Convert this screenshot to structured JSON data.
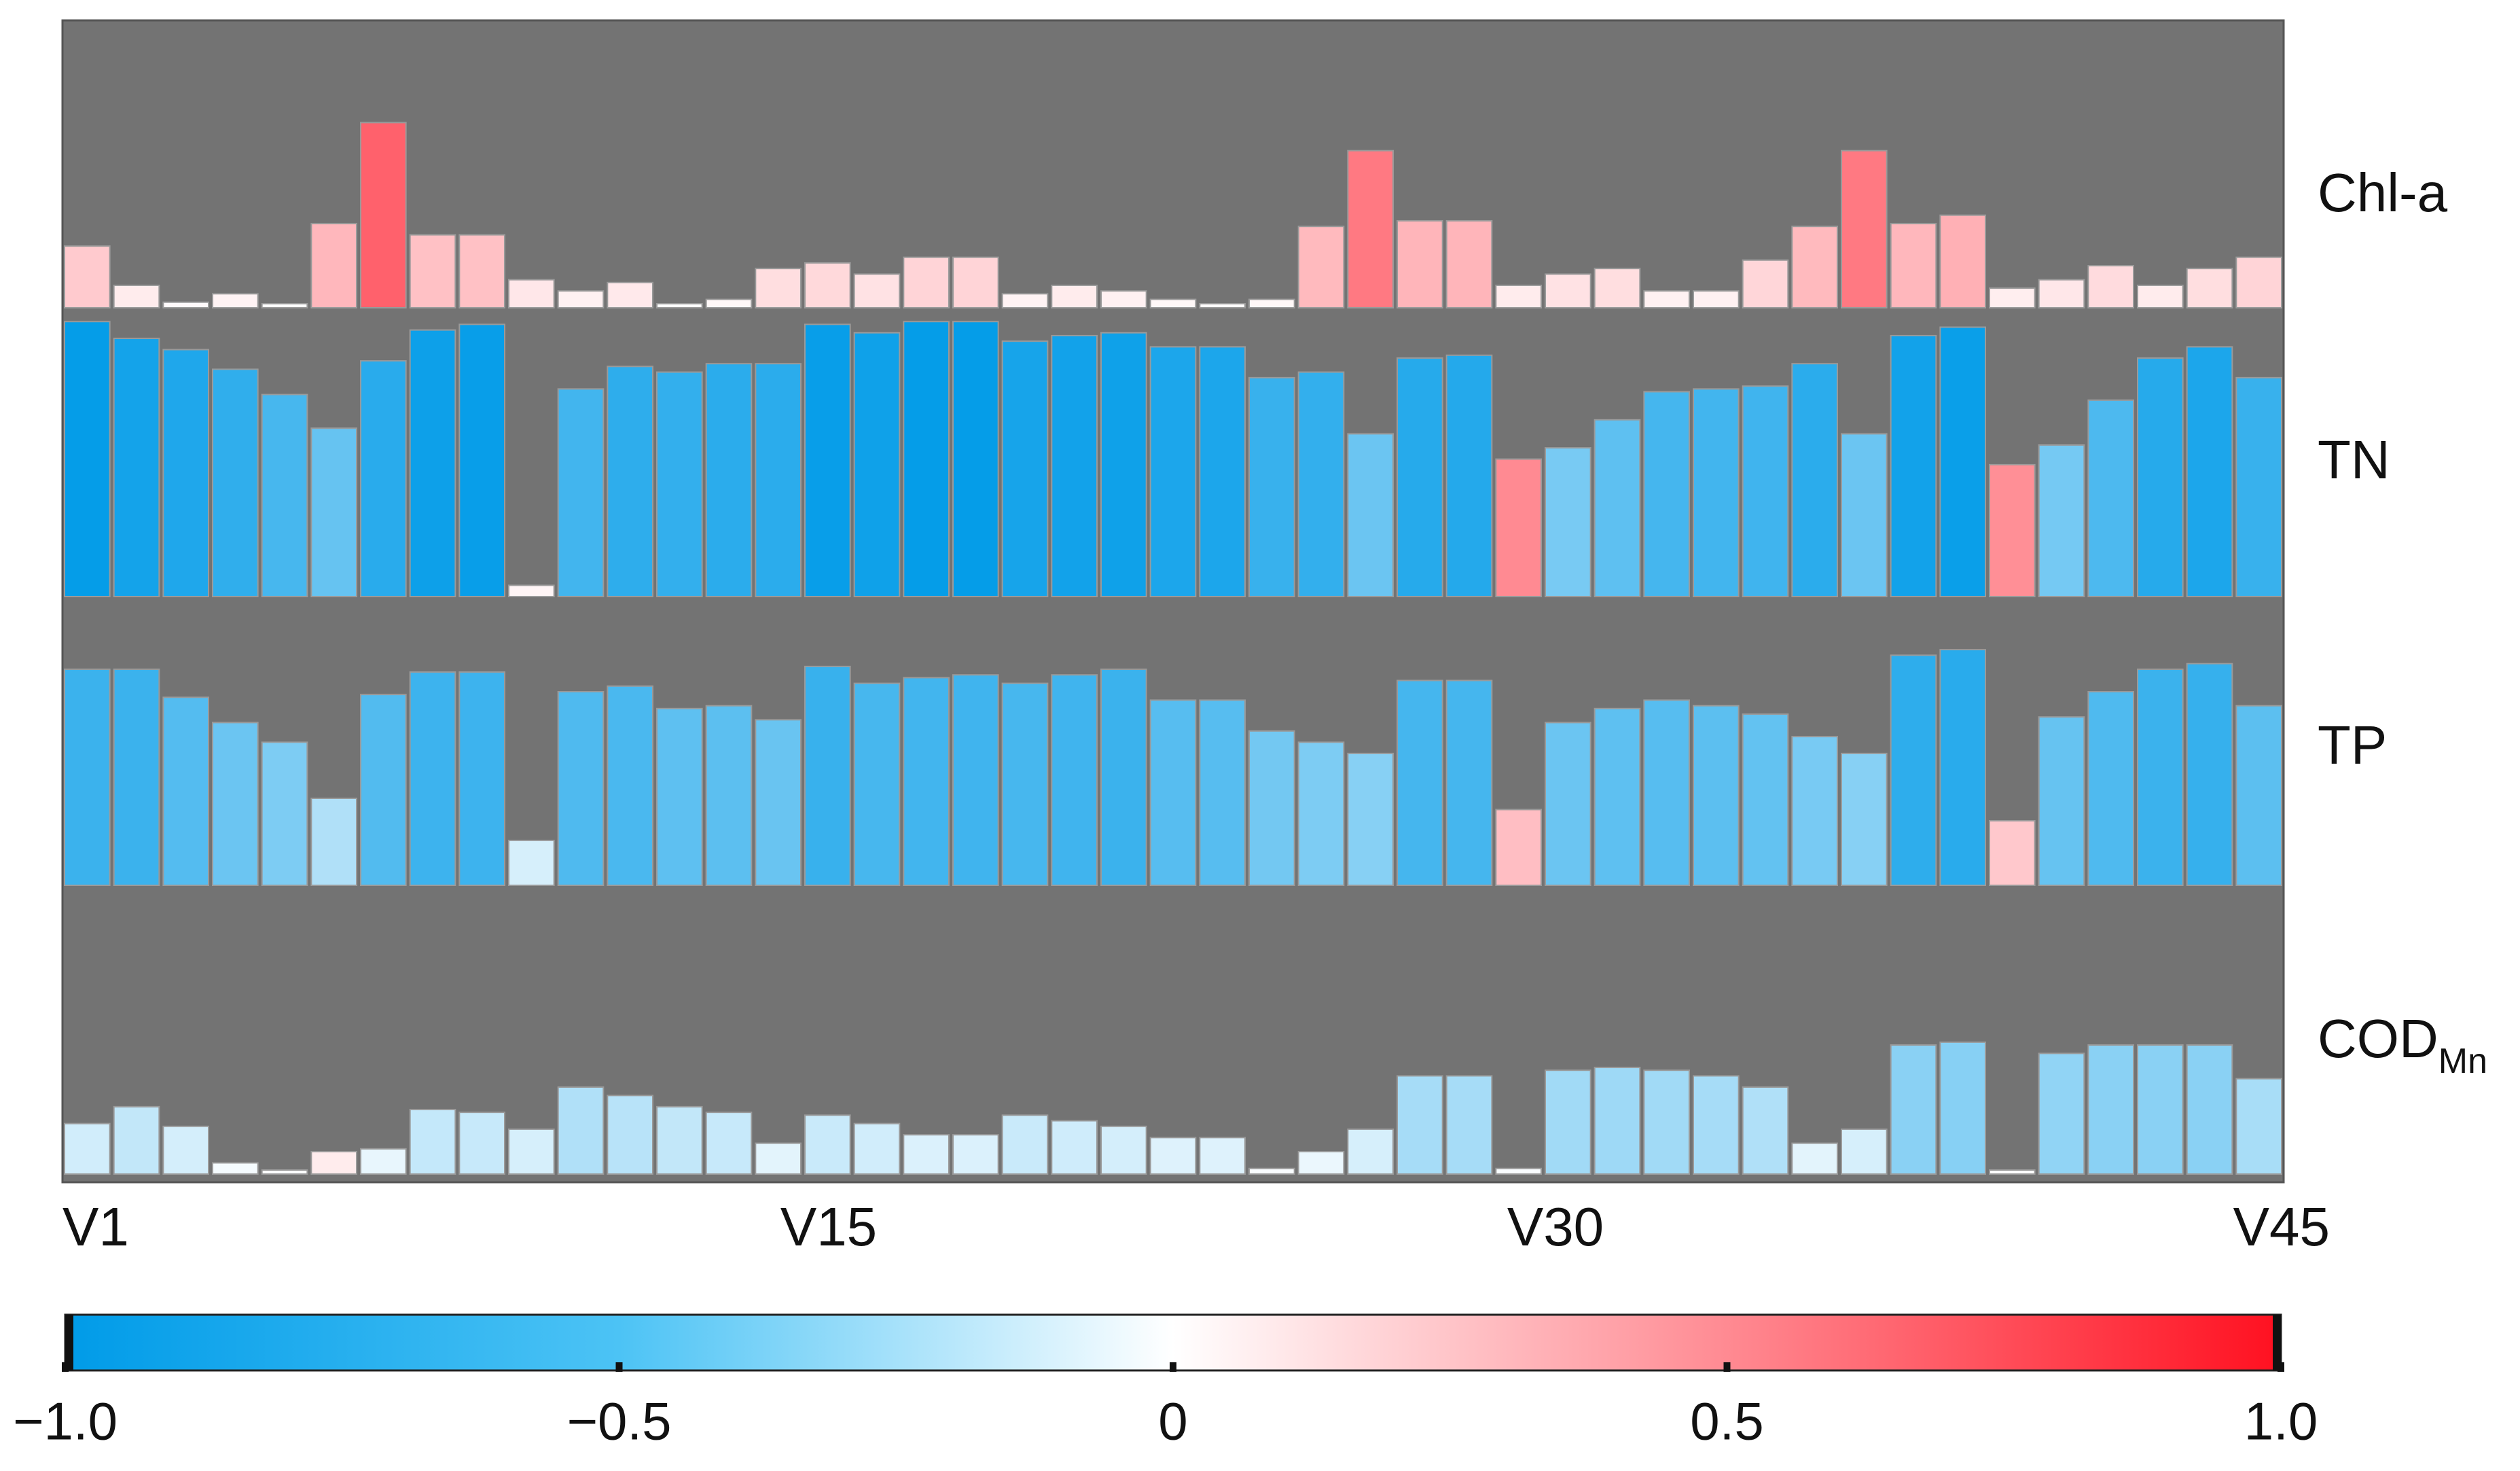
{
  "chart_data": {
    "type": "bar",
    "title": "",
    "categories": [
      "V1",
      "V2",
      "V3",
      "V4",
      "V5",
      "V6",
      "V7",
      "V8",
      "V9",
      "V10",
      "V11",
      "V12",
      "V13",
      "V14",
      "V15",
      "V16",
      "V17",
      "V18",
      "V19",
      "V20",
      "V21",
      "V22",
      "V23",
      "V24",
      "V25",
      "V26",
      "V27",
      "V28",
      "V29",
      "V30",
      "V31",
      "V32",
      "V33",
      "V34",
      "V35",
      "V36",
      "V37",
      "V38",
      "V39",
      "V40",
      "V41",
      "V42",
      "V43",
      "V44",
      "V45"
    ],
    "x_tick_labels": [
      "V1",
      "V15",
      "V30",
      "V45"
    ],
    "ylim": [
      -1.0,
      1.0
    ],
    "series": [
      {
        "name": "Chl-a",
        "values": [
          0.22,
          0.08,
          0.02,
          0.05,
          0.0,
          0.3,
          0.66,
          0.26,
          0.26,
          0.1,
          0.06,
          0.09,
          0.0,
          0.03,
          0.14,
          0.16,
          0.12,
          0.18,
          0.18,
          0.05,
          0.08,
          0.06,
          0.03,
          0.01,
          0.03,
          0.29,
          0.56,
          0.31,
          0.31,
          0.08,
          0.12,
          0.14,
          0.06,
          0.06,
          0.17,
          0.29,
          0.56,
          0.3,
          0.33,
          0.07,
          0.1,
          0.15,
          0.08,
          0.14,
          0.18
        ]
      },
      {
        "name": "TN",
        "values": [
          -0.98,
          -0.92,
          -0.88,
          -0.81,
          -0.72,
          -0.6,
          -0.84,
          -0.95,
          -0.97,
          0.04,
          -0.74,
          -0.82,
          -0.8,
          -0.83,
          -0.83,
          -0.97,
          -0.94,
          -0.98,
          -0.98,
          -0.91,
          -0.93,
          -0.94,
          -0.89,
          -0.89,
          -0.78,
          -0.8,
          -0.58,
          -0.85,
          -0.86,
          0.49,
          -0.53,
          -0.63,
          -0.73,
          -0.74,
          -0.75,
          -0.83,
          -0.58,
          -0.93,
          -0.96,
          0.47,
          -0.54,
          -0.7,
          -0.85,
          -0.89,
          -0.78
        ]
      },
      {
        "name": "TP",
        "values": [
          -0.77,
          -0.77,
          -0.67,
          -0.58,
          -0.51,
          -0.31,
          -0.68,
          -0.76,
          -0.76,
          -0.16,
          -0.69,
          -0.71,
          -0.63,
          -0.64,
          -0.59,
          -0.78,
          -0.72,
          -0.74,
          -0.75,
          -0.72,
          -0.75,
          -0.77,
          -0.66,
          -0.66,
          -0.55,
          -0.51,
          -0.47,
          -0.73,
          -0.73,
          0.27,
          -0.58,
          -0.63,
          -0.66,
          -0.64,
          -0.61,
          -0.53,
          -0.47,
          -0.82,
          -0.84,
          0.23,
          -0.6,
          -0.69,
          -0.77,
          -0.79,
          -0.64
        ]
      },
      {
        "name": "COD",
        "name_subscript": "Mn",
        "values": [
          -0.18,
          -0.24,
          -0.17,
          -0.04,
          -0.01,
          0.08,
          -0.09,
          -0.23,
          -0.22,
          -0.16,
          -0.31,
          -0.28,
          -0.24,
          -0.22,
          -0.11,
          -0.21,
          -0.18,
          -0.14,
          -0.14,
          -0.21,
          -0.19,
          -0.17,
          -0.13,
          -0.13,
          -0.02,
          -0.08,
          -0.16,
          -0.35,
          -0.35,
          -0.02,
          -0.37,
          -0.38,
          -0.37,
          -0.35,
          -0.31,
          -0.11,
          -0.16,
          -0.46,
          -0.47,
          0.0,
          -0.43,
          -0.46,
          -0.46,
          -0.46,
          -0.34
        ]
      }
    ],
    "colorbar": {
      "min": -1.0,
      "max": 1.0,
      "tick_values": [
        -1.0,
        -0.5,
        0,
        0.5,
        1.0
      ],
      "tick_labels": [
        "−1.0",
        "−0.5",
        "0",
        "0.5",
        "1.0"
      ],
      "colors": {
        "negative": "#009be8",
        "zero": "#ffffff",
        "positive": "#ff1020"
      }
    },
    "panel_background": "#737373",
    "grid": false,
    "legend": "colorbar-bottom"
  }
}
